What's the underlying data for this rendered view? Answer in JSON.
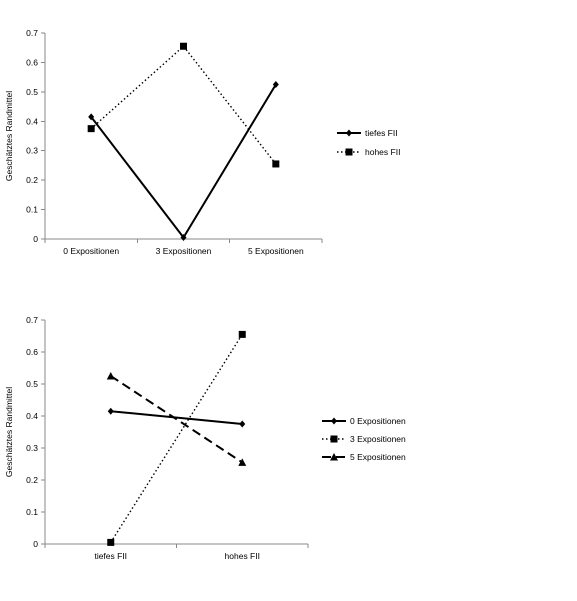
{
  "chart_data": [
    {
      "type": "line",
      "categories": [
        "0 Expositionen",
        "3 Expositionen",
        "5 Expositionen"
      ],
      "ylabel": "Geschätztes Randmittel",
      "ylim": [
        0,
        0.7
      ],
      "yticks": [
        "0",
        "0.1",
        "0.2",
        "0.3",
        "0.4",
        "0.5",
        "0.6",
        "0.7"
      ],
      "legend_position": "right",
      "series": [
        {
          "name": "tiefes FII",
          "values": [
            0.415,
            0.005,
            0.525
          ],
          "line": "solid",
          "marker": "diamond"
        },
        {
          "name": "hohes FII",
          "values": [
            0.375,
            0.655,
            0.255
          ],
          "line": "dotted",
          "marker": "square"
        }
      ]
    },
    {
      "type": "line",
      "categories": [
        "tiefes FII",
        "hohes FII"
      ],
      "ylabel": "Geschätztes Randmittel",
      "ylim": [
        0,
        0.7
      ],
      "yticks": [
        "0",
        "0.1",
        "0.2",
        "0.3",
        "0.4",
        "0.5",
        "0.6",
        "0.7"
      ],
      "legend_position": "right",
      "series": [
        {
          "name": "0 Expositionen",
          "values": [
            0.415,
            0.375
          ],
          "line": "solid",
          "marker": "diamond"
        },
        {
          "name": "3 Expositionen",
          "values": [
            0.005,
            0.655
          ],
          "line": "dotted",
          "marker": "square"
        },
        {
          "name": "5 Expositionen",
          "values": [
            0.525,
            0.255
          ],
          "line": "dashed",
          "marker": "triangle"
        }
      ]
    }
  ]
}
